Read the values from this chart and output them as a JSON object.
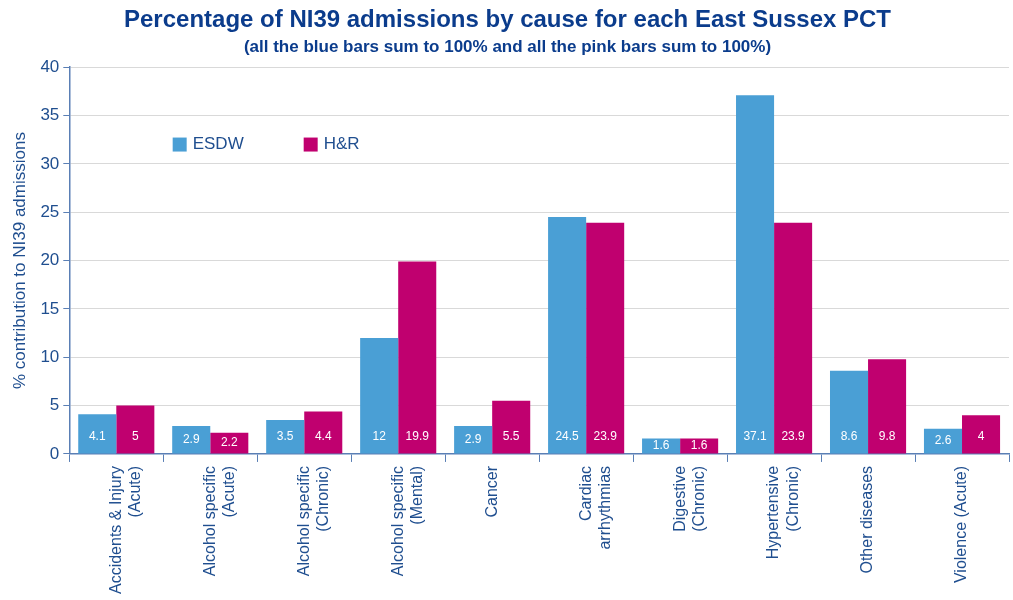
{
  "chart_data": {
    "type": "bar",
    "title": "Percentage of NI39 admissions by cause for each East Sussex PCT",
    "subtitle": "(all the blue bars sum to 100% and all the pink bars sum to 100%)",
    "ylabel": "% contribution to NI39 admissions",
    "categories": [
      "Accidents & Injury (Acute)",
      "Alcohol specific (Acute)",
      "Alcohol specific (Chronic)",
      "Alcohol specific (Mental)",
      "Cancer",
      "Cardiac arrhythmias",
      "Digestive (Chronic)",
      "Hypertensive (Chronic)",
      "Other diseases",
      "Violence (Acute)"
    ],
    "series": [
      {
        "name": "ESDW",
        "color": "#4a9fd5",
        "values": [
          4.1,
          2.9,
          3.5,
          12,
          2.9,
          24.5,
          1.6,
          37.1,
          8.6,
          2.6
        ]
      },
      {
        "name": "H&R",
        "color": "#c0006f",
        "values": [
          5,
          2.2,
          4.4,
          19.9,
          5.5,
          23.9,
          1.6,
          23.9,
          9.8,
          4
        ]
      }
    ],
    "ylim": [
      0,
      40
    ],
    "yticks": [
      0,
      5,
      10,
      15,
      20,
      25,
      30,
      35,
      40
    ],
    "grid": "y",
    "legend": "top left",
    "data_labels": true
  }
}
